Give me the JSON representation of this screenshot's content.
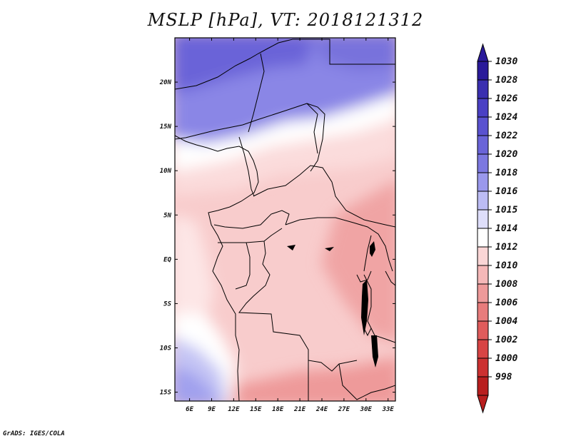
{
  "title": "MSLP [hPa], VT: 2018121312",
  "footer": "GrADS: IGES/COLA",
  "map": {
    "lon_range": [
      4,
      34
    ],
    "lat_range": [
      -16,
      25
    ],
    "lon_ticks": [
      "6E",
      "9E",
      "12E",
      "15E",
      "18E",
      "21E",
      "24E",
      "27E",
      "30E",
      "33E"
    ],
    "lat_ticks": [
      "20N",
      "15N",
      "10N",
      "5N",
      "EQ",
      "5S",
      "10S",
      "15S"
    ]
  },
  "colorbar": {
    "labels": [
      "1030",
      "1028",
      "1026",
      "1024",
      "1022",
      "1020",
      "1018",
      "1016",
      "1015",
      "1014",
      "1012",
      "1010",
      "1008",
      "1006",
      "1004",
      "1002",
      "1000",
      "998"
    ],
    "colors": [
      "#2a1a9a",
      "#3a2fb0",
      "#4a40c4",
      "#5a52d0",
      "#6a64d8",
      "#7c78e0",
      "#9a98ec",
      "#bcbcf4",
      "#dedefa",
      "#ffffff",
      "#fad6d6",
      "#f5b8b8",
      "#ee9a9a",
      "#e87c7c",
      "#e05c5c",
      "#d84444",
      "#cc3030",
      "#b81e1e"
    ]
  }
}
